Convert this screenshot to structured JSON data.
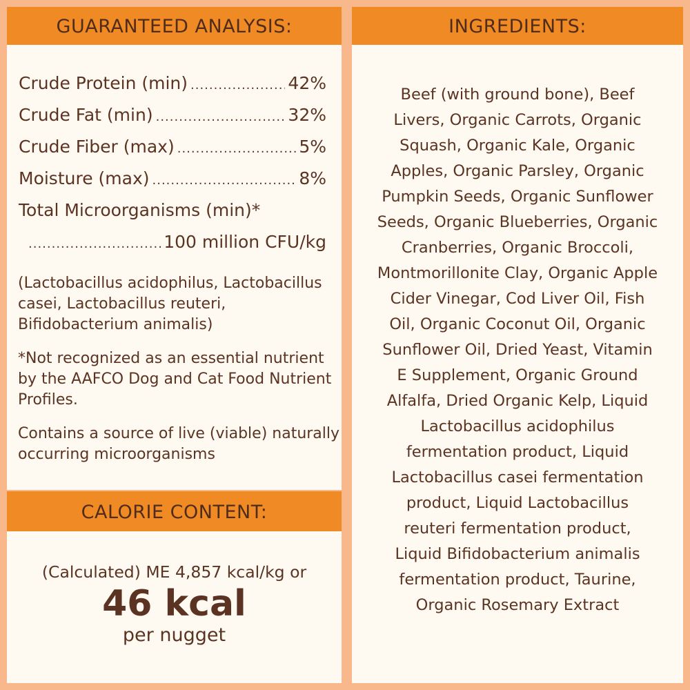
{
  "colors": {
    "background": "#f9b88c",
    "header": "#f08a24",
    "panel": "#fffaf1",
    "text": "#5b3322"
  },
  "analysis": {
    "title": "GUARANTEED ANALYSIS:",
    "rows": [
      {
        "label": "Crude Protein (min)",
        "value": "42%"
      },
      {
        "label": "Crude Fat (min)",
        "value": "32%"
      },
      {
        "label": "Crude Fiber (max)",
        "value": "5%"
      },
      {
        "label": "Moisture (max)",
        "value": "8%"
      }
    ],
    "micro_label": "Total Microorganisms (min)*",
    "micro_value": "100 million CFU/kg",
    "strains": "(Lactobacillus acidophilus, Lactobacillus casei, Lactobacillus reuteri, Bifidobacterium animalis)",
    "footnote": "*Not recognized as an essential nutrient by the AAFCO Dog and Cat Food Nutrient Profiles.",
    "live_note": "Contains a source of live (viable) naturally occurring microorganisms"
  },
  "calorie": {
    "title": "CALORIE CONTENT:",
    "line1": "(Calculated) ME 4,857 kcal/kg or",
    "big": "46 kcal",
    "per": "per nugget"
  },
  "ingredients": {
    "title": "INGREDIENTS:",
    "lines": [
      "Beef (with ground bone), Beef",
      "Livers, Organic Carrots, Organic",
      "Squash, Organic Kale, Organic",
      "Apples, Organic Parsley, Organic",
      "Pumpkin Seeds, Organic Sunflower",
      "Seeds, Organic Blueberries, Organic",
      "Cranberries, Organic Broccoli,",
      "Montmorillonite Clay, Organic Apple",
      "Cider Vinegar, Cod Liver Oil, Fish",
      "Oil, Organic Coconut Oil, Organic",
      "Sunflower Oil, Dried Yeast, Vitamin",
      "E Supplement, Organic Ground",
      "Alfalfa, Dried Organic Kelp, Liquid",
      "Lactobacillus acidophilus",
      "fermentation product, Liquid",
      "Lactobacillus casei fermentation",
      "product, Liquid Lactobacillus",
      "reuteri fermentation product,",
      "Liquid Bifidobacterium animalis",
      "fermentation product, Taurine,",
      "Organic Rosemary Extract"
    ]
  }
}
